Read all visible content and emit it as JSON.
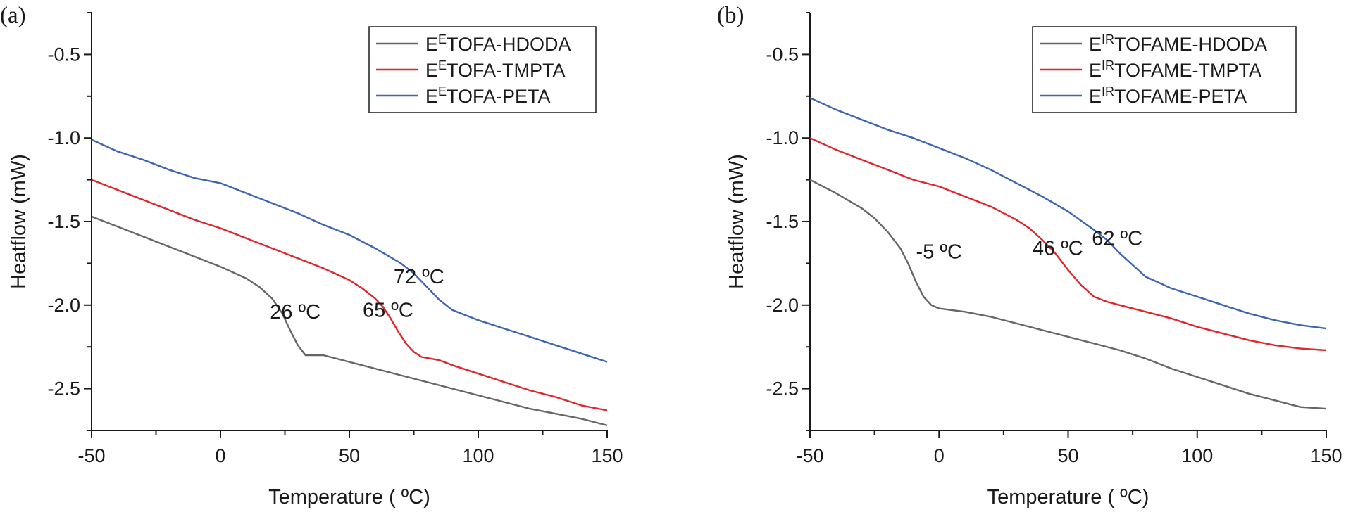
{
  "chart_data": [
    {
      "panel_label": "(a)",
      "type": "line",
      "xlabel": "Temperature ( ºC)",
      "ylabel": "Heatflow (mW)",
      "xlim": [
        -50,
        150
      ],
      "ylim": [
        -2.75,
        -0.25
      ],
      "xticks": [
        -50,
        0,
        50,
        100,
        150
      ],
      "xtick_labels": [
        "-50",
        "0",
        "50",
        "100",
        "150"
      ],
      "yticks": [
        -0.5,
        -1.0,
        -1.5,
        -2.0,
        -2.5
      ],
      "ytick_labels": [
        "-0.5",
        "-1.0",
        "-1.5",
        "-2.0",
        "-2.5"
      ],
      "legend_position": "top-right",
      "series": [
        {
          "name_base": "E",
          "name_sup": "E",
          "name_rest": "TOFA-HDODA",
          "color": "#666666",
          "points": [
            [
              -50,
              -1.47
            ],
            [
              -40,
              -1.53
            ],
            [
              -30,
              -1.59
            ],
            [
              -20,
              -1.65
            ],
            [
              -10,
              -1.71
            ],
            [
              0,
              -1.77
            ],
            [
              10,
              -1.84
            ],
            [
              15,
              -1.89
            ],
            [
              20,
              -1.96
            ],
            [
              24,
              -2.05
            ],
            [
              27,
              -2.15
            ],
            [
              30,
              -2.24
            ],
            [
              33,
              -2.3
            ],
            [
              36,
              -2.3
            ],
            [
              40,
              -2.3
            ],
            [
              50,
              -2.34
            ],
            [
              60,
              -2.38
            ],
            [
              70,
              -2.42
            ],
            [
              80,
              -2.46
            ],
            [
              90,
              -2.5
            ],
            [
              100,
              -2.54
            ],
            [
              110,
              -2.58
            ],
            [
              120,
              -2.62
            ],
            [
              130,
              -2.65
            ],
            [
              140,
              -2.68
            ],
            [
              150,
              -2.72
            ]
          ]
        },
        {
          "name_base": "E",
          "name_sup": "E",
          "name_rest": "TOFA-TMPTA",
          "color": "#e0262a",
          "points": [
            [
              -50,
              -1.25
            ],
            [
              -40,
              -1.31
            ],
            [
              -30,
              -1.37
            ],
            [
              -20,
              -1.43
            ],
            [
              -10,
              -1.49
            ],
            [
              0,
              -1.54
            ],
            [
              10,
              -1.6
            ],
            [
              20,
              -1.66
            ],
            [
              30,
              -1.72
            ],
            [
              40,
              -1.78
            ],
            [
              50,
              -1.85
            ],
            [
              55,
              -1.9
            ],
            [
              60,
              -1.96
            ],
            [
              63,
              -2.01
            ],
            [
              66,
              -2.08
            ],
            [
              69,
              -2.16
            ],
            [
              72,
              -2.23
            ],
            [
              75,
              -2.28
            ],
            [
              78,
              -2.31
            ],
            [
              85,
              -2.33
            ],
            [
              90,
              -2.36
            ],
            [
              100,
              -2.41
            ],
            [
              110,
              -2.46
            ],
            [
              120,
              -2.51
            ],
            [
              130,
              -2.55
            ],
            [
              140,
              -2.6
            ],
            [
              150,
              -2.63
            ]
          ]
        },
        {
          "name_base": "E",
          "name_sup": "E",
          "name_rest": "TOFA-PETA",
          "color": "#3e65b0",
          "points": [
            [
              -50,
              -1.01
            ],
            [
              -40,
              -1.08
            ],
            [
              -30,
              -1.13
            ],
            [
              -20,
              -1.19
            ],
            [
              -10,
              -1.24
            ],
            [
              0,
              -1.27
            ],
            [
              10,
              -1.33
            ],
            [
              20,
              -1.39
            ],
            [
              30,
              -1.45
            ],
            [
              40,
              -1.52
            ],
            [
              50,
              -1.58
            ],
            [
              60,
              -1.66
            ],
            [
              70,
              -1.75
            ],
            [
              75,
              -1.81
            ],
            [
              80,
              -1.89
            ],
            [
              85,
              -1.97
            ],
            [
              90,
              -2.03
            ],
            [
              100,
              -2.09
            ],
            [
              110,
              -2.14
            ],
            [
              120,
              -2.19
            ],
            [
              130,
              -2.24
            ],
            [
              140,
              -2.29
            ],
            [
              150,
              -2.34
            ]
          ]
        }
      ],
      "annotations": [
        {
          "text": "26 ºC",
          "x": 29,
          "y": -2.08
        },
        {
          "text": "65  ºC",
          "x": 65,
          "y": -2.07
        },
        {
          "text": "72 ºC",
          "x": 77,
          "y": -1.87
        }
      ]
    },
    {
      "panel_label": "(b)",
      "type": "line",
      "xlabel": "Temperature ( ºC)",
      "ylabel": "Heatflow (mW)",
      "xlim": [
        -50,
        150
      ],
      "ylim": [
        -2.75,
        -0.25
      ],
      "xticks": [
        -50,
        0,
        50,
        100,
        150
      ],
      "xtick_labels": [
        "-50",
        "0",
        "50",
        "100",
        "150"
      ],
      "yticks": [
        -0.5,
        -1.0,
        -1.5,
        -2.0,
        -2.5
      ],
      "ytick_labels": [
        "-0.5",
        "-1.0",
        "-1.5",
        "-2.0",
        "-2.5"
      ],
      "legend_position": "top-right",
      "series": [
        {
          "name_base": "E",
          "name_sup": "IR",
          "name_rest": "TOFAME-HDODA",
          "color": "#666666",
          "points": [
            [
              -50,
              -1.25
            ],
            [
              -40,
              -1.33
            ],
            [
              -30,
              -1.42
            ],
            [
              -25,
              -1.48
            ],
            [
              -20,
              -1.56
            ],
            [
              -15,
              -1.66
            ],
            [
              -12,
              -1.75
            ],
            [
              -9,
              -1.86
            ],
            [
              -6,
              -1.95
            ],
            [
              -3,
              -2.0
            ],
            [
              0,
              -2.02
            ],
            [
              10,
              -2.04
            ],
            [
              20,
              -2.07
            ],
            [
              30,
              -2.11
            ],
            [
              40,
              -2.15
            ],
            [
              50,
              -2.19
            ],
            [
              60,
              -2.23
            ],
            [
              70,
              -2.27
            ],
            [
              80,
              -2.32
            ],
            [
              90,
              -2.38
            ],
            [
              100,
              -2.43
            ],
            [
              110,
              -2.48
            ],
            [
              120,
              -2.53
            ],
            [
              130,
              -2.57
            ],
            [
              140,
              -2.61
            ],
            [
              150,
              -2.62
            ]
          ]
        },
        {
          "name_base": "E",
          "name_sup": "IR",
          "name_rest": "TOFAME-TMPTA",
          "color": "#e0262a",
          "points": [
            [
              -50,
              -1.0
            ],
            [
              -40,
              -1.07
            ],
            [
              -30,
              -1.13
            ],
            [
              -20,
              -1.19
            ],
            [
              -10,
              -1.25
            ],
            [
              0,
              -1.29
            ],
            [
              10,
              -1.35
            ],
            [
              20,
              -1.41
            ],
            [
              30,
              -1.49
            ],
            [
              35,
              -1.54
            ],
            [
              40,
              -1.61
            ],
            [
              45,
              -1.69
            ],
            [
              50,
              -1.79
            ],
            [
              55,
              -1.88
            ],
            [
              60,
              -1.95
            ],
            [
              65,
              -1.98
            ],
            [
              70,
              -2.0
            ],
            [
              80,
              -2.04
            ],
            [
              90,
              -2.08
            ],
            [
              100,
              -2.13
            ],
            [
              110,
              -2.17
            ],
            [
              120,
              -2.21
            ],
            [
              130,
              -2.24
            ],
            [
              140,
              -2.26
            ],
            [
              150,
              -2.27
            ]
          ]
        },
        {
          "name_base": "E",
          "name_sup": "IR",
          "name_rest": "TOFAME-PETA",
          "color": "#3e65b0",
          "points": [
            [
              -50,
              -0.76
            ],
            [
              -40,
              -0.83
            ],
            [
              -30,
              -0.89
            ],
            [
              -20,
              -0.95
            ],
            [
              -10,
              -1.0
            ],
            [
              0,
              -1.06
            ],
            [
              10,
              -1.12
            ],
            [
              20,
              -1.19
            ],
            [
              30,
              -1.27
            ],
            [
              40,
              -1.35
            ],
            [
              50,
              -1.44
            ],
            [
              60,
              -1.55
            ],
            [
              65,
              -1.61
            ],
            [
              70,
              -1.69
            ],
            [
              75,
              -1.76
            ],
            [
              80,
              -1.83
            ],
            [
              90,
              -1.9
            ],
            [
              100,
              -1.95
            ],
            [
              110,
              -2.0
            ],
            [
              120,
              -2.05
            ],
            [
              130,
              -2.09
            ],
            [
              140,
              -2.12
            ],
            [
              150,
              -2.14
            ]
          ]
        }
      ],
      "annotations": [
        {
          "text": "-5 ºC",
          "x": 0,
          "y": -1.72
        },
        {
          "text": "46 ºC",
          "x": 46,
          "y": -1.7
        },
        {
          "text": "62 ºC",
          "x": 69,
          "y": -1.64
        }
      ]
    }
  ]
}
